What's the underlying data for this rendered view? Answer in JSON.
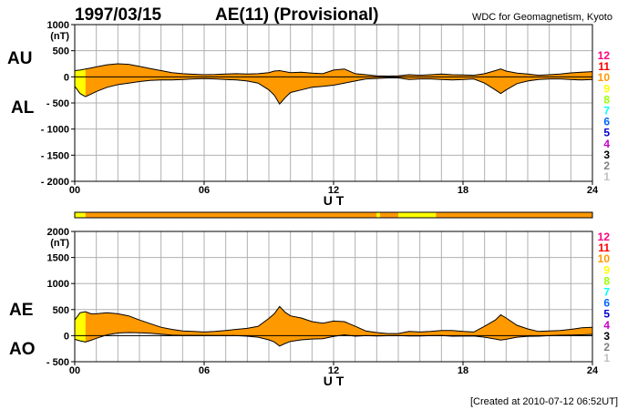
{
  "header": {
    "date": "1997/03/15",
    "title": "AE(11) (Provisional)",
    "source": "WDC for Geomagnetism, Kyoto"
  },
  "footer": "[Created at 2010-07-12 06:52UT]",
  "colors": {
    "fill_main": "#ff9900",
    "fill_low": "#ffff00",
    "grid": "#b0b0b0"
  },
  "station_count_legend": [
    {
      "label": "12",
      "color": "#ff0080"
    },
    {
      "label": "11",
      "color": "#ff0000"
    },
    {
      "label": "10",
      "color": "#ff9900"
    },
    {
      "label": "9",
      "color": "#ffff00"
    },
    {
      "label": "8",
      "color": "#99ff00"
    },
    {
      "label": "7",
      "color": "#00ffff"
    },
    {
      "label": "6",
      "color": "#0066ff"
    },
    {
      "label": "5",
      "color": "#0000cc"
    },
    {
      "label": "4",
      "color": "#cc00cc"
    },
    {
      "label": "3",
      "color": "#000000"
    },
    {
      "label": "2",
      "color": "#808080"
    },
    {
      "label": "1",
      "color": "#c0c0c0"
    }
  ],
  "chart_data": [
    {
      "type": "area",
      "id": "au_al",
      "series_labels": [
        "AU",
        "AL"
      ],
      "unit_label": "(nT)",
      "xlabel": "U T",
      "xlim": [
        0,
        24
      ],
      "xticks": [
        0,
        6,
        12,
        18,
        24
      ],
      "xtick_labels": [
        "00",
        "06",
        "12",
        "18",
        "24"
      ],
      "ylim": [
        -2000,
        1000
      ],
      "yticks": [
        1000,
        500,
        0,
        -500,
        -1000,
        -1500,
        -2000
      ],
      "ytick_labels": [
        "1000",
        "500",
        "0",
        "- 500",
        "- 1000",
        "- 1500",
        "- 2000"
      ],
      "grid": true,
      "x": [
        0,
        0.25,
        0.5,
        0.75,
        1,
        1.5,
        2,
        2.5,
        3,
        3.5,
        4,
        4.5,
        5,
        5.5,
        6,
        6.5,
        7,
        7.5,
        8,
        8.5,
        9,
        9.25,
        9.5,
        9.75,
        10,
        10.5,
        11,
        11.5,
        12,
        12.5,
        13,
        13.5,
        14,
        14.5,
        15,
        15.5,
        16,
        16.5,
        17,
        17.5,
        18,
        18.5,
        19,
        19.5,
        19.75,
        20,
        20.5,
        21,
        21.5,
        22,
        22.5,
        23,
        23.5,
        24
      ],
      "au": [
        120,
        130,
        150,
        170,
        190,
        230,
        250,
        240,
        200,
        160,
        120,
        80,
        60,
        50,
        40,
        45,
        55,
        60,
        55,
        60,
        80,
        110,
        120,
        100,
        80,
        90,
        70,
        60,
        130,
        150,
        60,
        40,
        20,
        15,
        20,
        40,
        30,
        40,
        55,
        40,
        35,
        30,
        60,
        120,
        150,
        110,
        70,
        55,
        30,
        40,
        55,
        75,
        90,
        100
      ],
      "al": [
        -180,
        -320,
        -380,
        -330,
        -280,
        -200,
        -150,
        -120,
        -90,
        -70,
        -60,
        -60,
        -50,
        -40,
        -35,
        -40,
        -50,
        -60,
        -80,
        -120,
        -250,
        -350,
        -520,
        -400,
        -300,
        -250,
        -200,
        -180,
        -160,
        -120,
        -80,
        -40,
        -30,
        -20,
        -20,
        -50,
        -40,
        -40,
        -50,
        -60,
        -50,
        -40,
        -120,
        -250,
        -320,
        -250,
        -130,
        -80,
        -50,
        -40,
        -40,
        -50,
        -60,
        -50
      ]
    },
    {
      "type": "area",
      "id": "ae_ao",
      "series_labels": [
        "AE",
        "AO"
      ],
      "unit_label": "(nT)",
      "xlabel": "U T",
      "xlim": [
        0,
        24
      ],
      "xticks": [
        0,
        6,
        12,
        18,
        24
      ],
      "xtick_labels": [
        "00",
        "06",
        "12",
        "18",
        "24"
      ],
      "ylim": [
        -500,
        2000
      ],
      "yticks": [
        2000,
        1500,
        1000,
        500,
        0,
        -500
      ],
      "ytick_labels": [
        "2000",
        "1500",
        "1000",
        "500",
        "0",
        "- 500"
      ],
      "grid": true,
      "x": [
        0,
        0.25,
        0.5,
        0.75,
        1,
        1.5,
        2,
        2.5,
        3,
        3.5,
        4,
        4.5,
        5,
        5.5,
        6,
        6.5,
        7,
        7.5,
        8,
        8.5,
        9,
        9.25,
        9.5,
        9.75,
        10,
        10.5,
        11,
        11.5,
        12,
        12.5,
        13,
        13.5,
        14,
        14.5,
        15,
        15.5,
        16,
        16.5,
        17,
        17.5,
        18,
        18.5,
        19,
        19.5,
        19.75,
        20,
        20.5,
        21,
        21.5,
        22,
        22.5,
        23,
        23.5,
        24
      ],
      "ae": [
        300,
        440,
        460,
        420,
        420,
        440,
        420,
        380,
        300,
        230,
        160,
        120,
        90,
        80,
        70,
        80,
        100,
        120,
        140,
        180,
        330,
        420,
        560,
        450,
        380,
        340,
        270,
        240,
        280,
        270,
        180,
        90,
        60,
        40,
        40,
        80,
        70,
        80,
        100,
        100,
        80,
        70,
        180,
        300,
        400,
        340,
        200,
        130,
        80,
        90,
        100,
        120,
        150,
        160
      ],
      "ao": [
        -70,
        -100,
        -120,
        -90,
        -50,
        15,
        50,
        60,
        55,
        45,
        30,
        10,
        5,
        5,
        5,
        3,
        3,
        0,
        -10,
        -30,
        -80,
        -120,
        -200,
        -150,
        -110,
        -80,
        -65,
        -60,
        -15,
        15,
        -10,
        0,
        -5,
        -2,
        0,
        -5,
        -5,
        0,
        3,
        -10,
        -8,
        -5,
        -30,
        -65,
        -85,
        -70,
        -30,
        -13,
        -10,
        0,
        8,
        13,
        15,
        25
      ]
    }
  ],
  "coverage_bar": {
    "segments": [
      {
        "start": 0,
        "end": 0.5,
        "count": "9"
      },
      {
        "start": 0.5,
        "end": 14,
        "count": "10"
      },
      {
        "start": 14,
        "end": 14.15,
        "count": "9"
      },
      {
        "start": 14.15,
        "end": 15,
        "count": "10"
      },
      {
        "start": 15,
        "end": 16.75,
        "count": "9"
      },
      {
        "start": 16.75,
        "end": 24,
        "count": "10"
      }
    ]
  }
}
